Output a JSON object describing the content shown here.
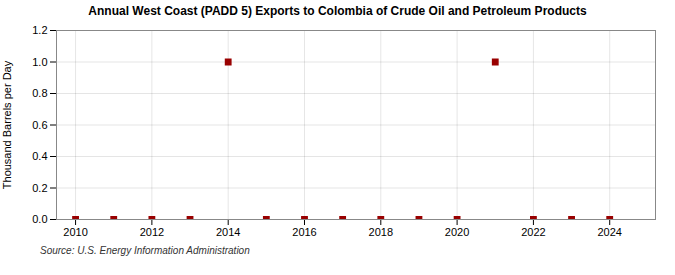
{
  "chart_data": {
    "type": "scatter",
    "title": "Annual West Coast (PADD 5) Exports to Colombia of Crude Oil and Petroleum Products",
    "ylabel": "Thousand Barrels per Day",
    "source": "Source: U.S. Energy Information Administration",
    "x": [
      2010,
      2011,
      2012,
      2013,
      2014,
      2015,
      2016,
      2017,
      2018,
      2019,
      2020,
      2021,
      2022,
      2023,
      2024
    ],
    "values": [
      0.0,
      0.0,
      0.0,
      0.0,
      1.0,
      0.0,
      0.0,
      0.0,
      0.0,
      0.0,
      0.0,
      1.0,
      0.0,
      0.0,
      0.0
    ],
    "color": "#990000",
    "marker": "square",
    "xlim": [
      2009.5,
      2025.2
    ],
    "ylim": [
      0.0,
      1.2
    ],
    "xticks": [
      2010,
      2012,
      2014,
      2016,
      2018,
      2020,
      2022,
      2024
    ],
    "yticks": [
      {
        "value": 0.0,
        "label": "0.0"
      },
      0.2,
      0.4,
      0.6,
      0.8,
      {
        "value": 1.0,
        "label": "1.0"
      },
      1.2
    ],
    "grid": true
  }
}
